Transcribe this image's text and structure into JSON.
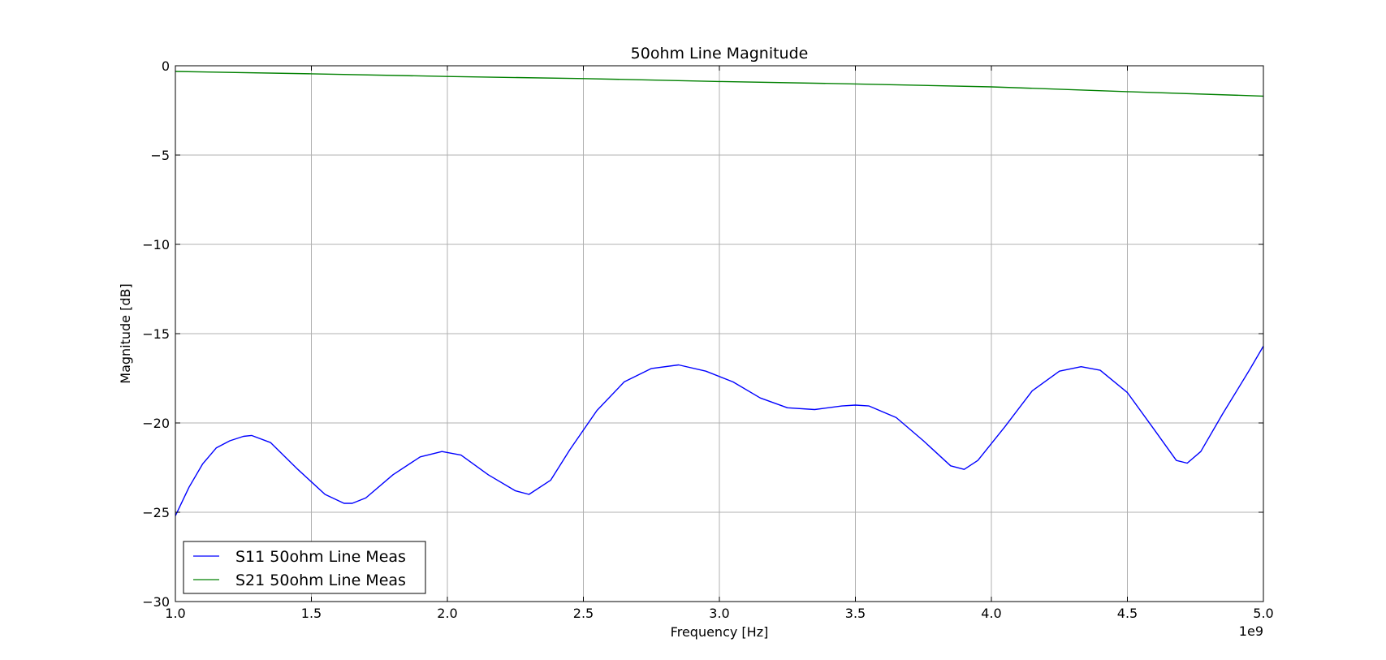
{
  "chart_data": {
    "type": "line",
    "title": "50ohm Line Magnitude",
    "xlabel": "Frequency [Hz]",
    "ylabel": "Magnitude [dB]",
    "x_offset_text": "1e9",
    "xlim": [
      1.0,
      5.0
    ],
    "ylim": [
      -30,
      0
    ],
    "x_ticks": [
      "1.0",
      "1.5",
      "2.0",
      "2.5",
      "3.0",
      "3.5",
      "4.0",
      "4.5",
      "5.0"
    ],
    "y_ticks": [
      "0",
      "−5",
      "−10",
      "−15",
      "−20",
      "−25",
      "−30"
    ],
    "grid": true,
    "legend_position": "lower-left",
    "series": [
      {
        "name": "S11 50ohm Line Meas",
        "color": "#0000ff",
        "x": [
          1.0,
          1.05,
          1.1,
          1.15,
          1.2,
          1.25,
          1.28,
          1.35,
          1.45,
          1.55,
          1.62,
          1.65,
          1.7,
          1.8,
          1.9,
          1.98,
          2.05,
          2.15,
          2.25,
          2.3,
          2.38,
          2.45,
          2.55,
          2.65,
          2.75,
          2.85,
          2.95,
          3.05,
          3.15,
          3.25,
          3.35,
          3.45,
          3.5,
          3.55,
          3.65,
          3.75,
          3.85,
          3.9,
          3.95,
          4.05,
          4.15,
          4.25,
          4.33,
          4.4,
          4.5,
          4.6,
          4.68,
          4.72,
          4.77,
          4.85,
          4.95,
          5.0
        ],
        "y": [
          -25.2,
          -23.6,
          -22.3,
          -21.4,
          -21.0,
          -20.75,
          -20.7,
          -21.1,
          -22.6,
          -24.0,
          -24.5,
          -24.5,
          -24.2,
          -22.9,
          -21.9,
          -21.6,
          -21.8,
          -22.9,
          -23.8,
          -24.0,
          -23.2,
          -21.5,
          -19.3,
          -17.7,
          -16.95,
          -16.75,
          -17.1,
          -17.7,
          -18.6,
          -19.15,
          -19.25,
          -19.05,
          -19.0,
          -19.05,
          -19.7,
          -21.0,
          -22.4,
          -22.6,
          -22.1,
          -20.2,
          -18.2,
          -17.1,
          -16.85,
          -17.05,
          -18.3,
          -20.4,
          -22.1,
          -22.25,
          -21.6,
          -19.5,
          -17.0,
          -15.7
        ]
      },
      {
        "name": "S21 50ohm Line Meas",
        "color": "#008000",
        "x": [
          1.0,
          1.5,
          2.0,
          2.5,
          3.0,
          3.5,
          4.0,
          4.5,
          5.0
        ],
        "y": [
          -0.32,
          -0.45,
          -0.6,
          -0.72,
          -0.88,
          -1.02,
          -1.18,
          -1.45,
          -1.7
        ]
      }
    ]
  }
}
